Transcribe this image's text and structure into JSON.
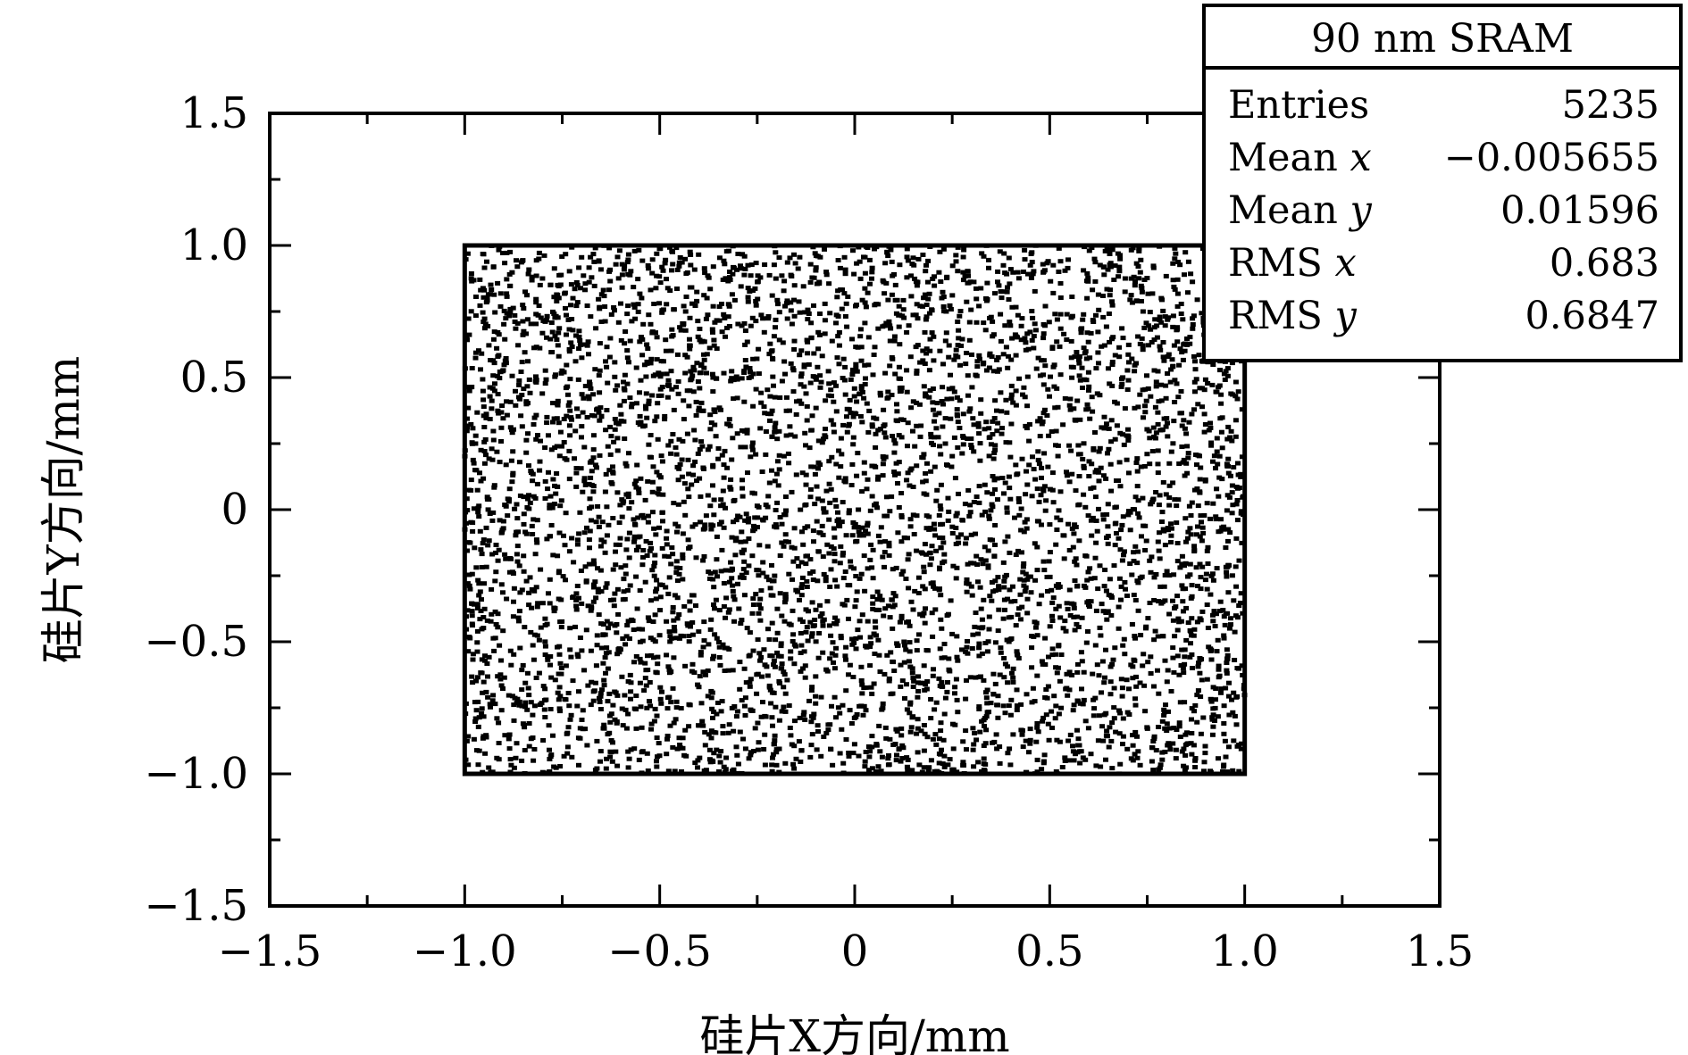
{
  "chart_data": {
    "type": "scatter",
    "xlabel": "硅片X方向/mm",
    "ylabel": "硅片Y方向/mm",
    "xlim": [
      -1.5,
      1.5
    ],
    "ylim": [
      -1.5,
      1.5
    ],
    "x_ticks": [
      -1.5,
      -1.0,
      -0.5,
      0,
      0.5,
      1.0,
      1.5
    ],
    "y_ticks": [
      -1.5,
      -1.0,
      -0.5,
      0,
      0.5,
      1.0,
      1.5
    ],
    "x_tick_labels": [
      "−1.5",
      "−1.0",
      "−0.5",
      "0",
      "0.5",
      "1.0",
      "1.5"
    ],
    "y_tick_labels": [
      "−1.5",
      "−1.0",
      "−0.5",
      "0",
      "0.5",
      "1.0",
      "1.5"
    ],
    "region": {
      "x": [
        -1.0,
        1.0
      ],
      "y": [
        -1.0,
        1.0
      ]
    },
    "distribution": "uniform random points filling the region",
    "grid": false,
    "stats_box": {
      "title": "90 nm SRAM",
      "rows": [
        {
          "label": "Entries",
          "value": "5235"
        },
        {
          "label": "Mean x",
          "value": "−0.005655"
        },
        {
          "label": "Mean y",
          "value": "0.01596"
        },
        {
          "label": "RMS x",
          "value": "0.683"
        },
        {
          "label": "RMS y",
          "value": "0.6847"
        }
      ],
      "position": "top-right"
    },
    "colors": {
      "points": "#000000",
      "frame": "#000000",
      "background": "#ffffff"
    }
  }
}
